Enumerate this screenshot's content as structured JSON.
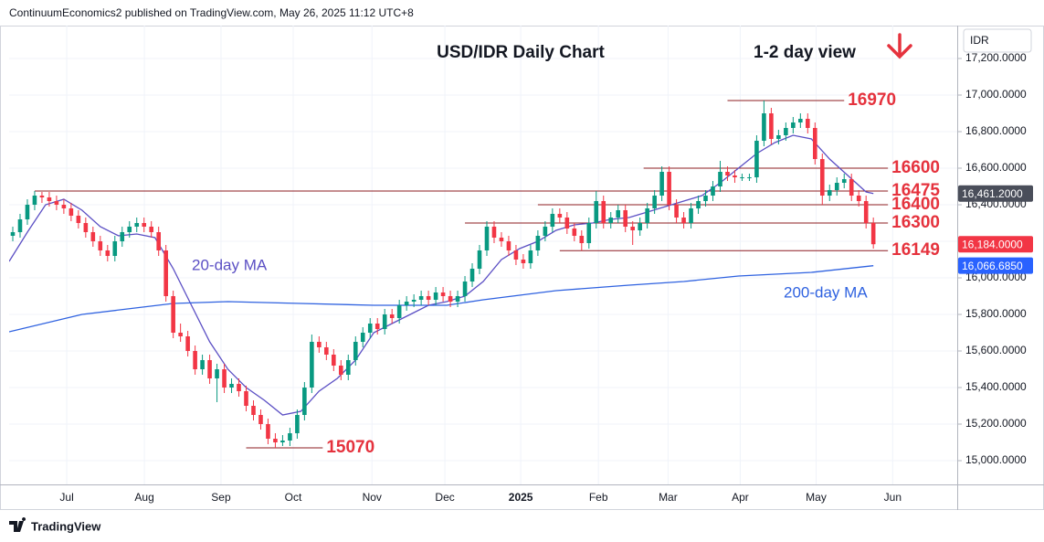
{
  "header": "ContinuumEconomics2 published on TradingView.com, May 26, 2025 11:12 UTC+8",
  "footer": "TradingView",
  "chart_data": {
    "type": "candlestick",
    "title": "USD/IDR Daily Chart",
    "subtitle": "1-2 day view",
    "currency": "IDR",
    "up_color": "#089981",
    "down_color": "#f23645",
    "grid": true,
    "xlim": [
      0,
      260
    ],
    "xticks": [
      {
        "value": 15.8,
        "label": "Jul"
      },
      {
        "value": 37.1,
        "label": "Aug"
      },
      {
        "value": 58.1,
        "label": "Sep"
      },
      {
        "value": 77.9,
        "label": "Oct"
      },
      {
        "value": 99.5,
        "label": "Nov"
      },
      {
        "value": 119.5,
        "label": "Dec"
      },
      {
        "value": 140.3,
        "label": "2025"
      },
      {
        "value": 161.6,
        "label": "Feb"
      },
      {
        "value": 180.7,
        "label": "Mar"
      },
      {
        "value": 200.5,
        "label": "Apr"
      },
      {
        "value": 221.3,
        "label": "May"
      },
      {
        "value": 242.3,
        "label": "Jun"
      }
    ],
    "ylim": [
      14870,
      17380
    ],
    "yticks": [
      {
        "value": 17200,
        "label": "17,200.0000"
      },
      {
        "value": 17000,
        "label": "17,000.0000"
      },
      {
        "value": 16800,
        "label": "16,800.0000"
      },
      {
        "value": 16600,
        "label": "16,600.0000"
      },
      {
        "value": 16400,
        "label": "16,400.0000"
      },
      {
        "value": 16200,
        "label": "16,200.0000"
      },
      {
        "value": 16000,
        "label": "16,000.0000"
      },
      {
        "value": 15800,
        "label": "15,800.0000"
      },
      {
        "value": 15600,
        "label": "15,600.0000"
      },
      {
        "value": 15400,
        "label": "15,400.0000"
      },
      {
        "value": 15200,
        "label": "15,200.0000"
      },
      {
        "value": 15000,
        "label": "15,000.0000"
      }
    ],
    "candles": {
      "x": [
        1,
        3,
        5,
        7,
        9,
        11,
        13,
        15,
        17,
        19,
        21,
        23,
        25,
        27,
        29,
        31,
        33,
        35,
        37,
        39,
        41,
        43,
        45,
        47,
        49,
        51,
        53,
        55,
        57,
        59,
        61,
        63,
        65,
        67,
        69,
        71,
        73,
        75,
        77,
        79,
        81,
        83,
        85,
        87,
        89,
        91,
        93,
        95,
        97,
        99,
        101,
        103,
        105,
        107,
        109,
        111,
        113,
        115,
        117,
        119,
        121,
        123,
        125,
        127,
        129,
        131,
        133,
        135,
        137,
        139,
        141,
        143,
        145,
        147,
        149,
        151,
        153,
        155,
        157,
        159,
        161,
        163,
        165,
        167,
        169,
        171,
        173,
        175,
        177,
        179,
        181,
        183,
        185,
        187,
        189,
        191,
        193,
        195,
        197,
        199,
        201,
        203,
        205,
        207,
        209,
        211,
        213,
        215,
        217,
        219,
        221,
        223,
        225,
        227,
        229,
        231,
        233,
        235,
        237
      ],
      "open": [
        16230,
        16250,
        16320,
        16400,
        16450,
        16440,
        16420,
        16400,
        16380,
        16340,
        16300,
        16250,
        16200,
        16150,
        16120,
        16200,
        16250,
        16280,
        16300,
        16280,
        16250,
        16150,
        15900,
        15700,
        15680,
        15600,
        15500,
        15550,
        15450,
        15500,
        15400,
        15420,
        15380,
        15300,
        15250,
        15200,
        15120,
        15100,
        15110,
        15150,
        15250,
        15400,
        15650,
        15620,
        15580,
        15520,
        15470,
        15550,
        15650,
        15700,
        15750,
        15720,
        15800,
        15780,
        15850,
        15870,
        15880,
        15900,
        15880,
        15920,
        15900,
        15870,
        15900,
        15980,
        16050,
        16150,
        16280,
        16220,
        16200,
        16150,
        16100,
        16080,
        16150,
        16230,
        16280,
        16350,
        16330,
        16270,
        16230,
        16190,
        16300,
        16420,
        16300,
        16330,
        16370,
        16280,
        16260,
        16300,
        16380,
        16450,
        16580,
        16400,
        16330,
        16300,
        16380,
        16420,
        16450,
        16500,
        16580,
        16560,
        16550,
        16550,
        16550,
        16750,
        16900,
        16760,
        16780,
        16820,
        16850,
        16870,
        16820,
        16650,
        16450,
        16480,
        16520,
        16540,
        16450,
        16420,
        16300
      ],
      "high": [
        16280,
        16350,
        16430,
        16475,
        16470,
        16470,
        16450,
        16430,
        16410,
        16370,
        16330,
        16280,
        16230,
        16180,
        16230,
        16280,
        16310,
        16330,
        16330,
        16310,
        16280,
        16180,
        15930,
        15750,
        15710,
        15630,
        15580,
        15580,
        15530,
        15530,
        15450,
        15450,
        15410,
        15330,
        15280,
        15230,
        15150,
        15140,
        15180,
        15280,
        15430,
        15690,
        15680,
        15650,
        15610,
        15550,
        15580,
        15680,
        15730,
        15780,
        15780,
        15830,
        15830,
        15880,
        15900,
        15910,
        15930,
        15930,
        15950,
        15950,
        15930,
        15930,
        16010,
        16080,
        16180,
        16310,
        16310,
        16250,
        16230,
        16180,
        16130,
        16180,
        16260,
        16310,
        16380,
        16380,
        16360,
        16300,
        16260,
        16330,
        16475,
        16450,
        16360,
        16400,
        16400,
        16310,
        16330,
        16410,
        16480,
        16610,
        16610,
        16430,
        16360,
        16410,
        16450,
        16480,
        16530,
        16640,
        16610,
        16590,
        16570,
        16570,
        16780,
        16970,
        16930,
        16810,
        16850,
        16880,
        16900,
        16900,
        16850,
        16680,
        16510,
        16550,
        16570,
        16570,
        16480,
        16450,
        16330
      ],
      "low": [
        16200,
        16220,
        16290,
        16370,
        16410,
        16390,
        16370,
        16350,
        16310,
        16270,
        16220,
        16170,
        16120,
        16090,
        16090,
        16170,
        16220,
        16250,
        16250,
        16220,
        16120,
        15870,
        15670,
        15650,
        15570,
        15470,
        15470,
        15420,
        15320,
        15370,
        15370,
        15350,
        15270,
        15220,
        15170,
        15090,
        15070,
        15080,
        15080,
        15120,
        15220,
        15370,
        15590,
        15550,
        15490,
        15440,
        15440,
        15520,
        15620,
        15670,
        15690,
        15690,
        15750,
        15750,
        15820,
        15840,
        15850,
        15850,
        15850,
        15870,
        15840,
        15840,
        15870,
        15950,
        16020,
        16120,
        16190,
        16170,
        16120,
        16070,
        16050,
        16050,
        16120,
        16200,
        16250,
        16300,
        16240,
        16200,
        16149,
        16160,
        16270,
        16270,
        16270,
        16300,
        16250,
        16180,
        16230,
        16270,
        16350,
        16420,
        16370,
        16300,
        16270,
        16270,
        16350,
        16390,
        16420,
        16470,
        16530,
        16520,
        16530,
        16530,
        16520,
        16720,
        16730,
        16730,
        16750,
        16790,
        16820,
        16790,
        16620,
        16400,
        16420,
        16450,
        16490,
        16420,
        16390,
        16270,
        16160
      ],
      "close": [
        16250,
        16320,
        16400,
        16450,
        16440,
        16420,
        16400,
        16380,
        16340,
        16300,
        16250,
        16200,
        16150,
        16120,
        16200,
        16250,
        16280,
        16300,
        16280,
        16250,
        16150,
        15900,
        15700,
        15680,
        15600,
        15500,
        15550,
        15450,
        15500,
        15400,
        15420,
        15380,
        15300,
        15250,
        15200,
        15120,
        15100,
        15110,
        15150,
        15250,
        15400,
        15650,
        15620,
        15580,
        15520,
        15470,
        15550,
        15650,
        15700,
        15750,
        15720,
        15800,
        15780,
        15850,
        15870,
        15880,
        15900,
        15880,
        15920,
        15900,
        15870,
        15900,
        15980,
        16050,
        16150,
        16280,
        16220,
        16200,
        16150,
        16100,
        16080,
        16150,
        16230,
        16280,
        16350,
        16330,
        16270,
        16230,
        16190,
        16300,
        16420,
        16300,
        16330,
        16370,
        16280,
        16260,
        16300,
        16380,
        16450,
        16580,
        16400,
        16330,
        16300,
        16380,
        16420,
        16450,
        16500,
        16580,
        16560,
        16550,
        16550,
        16550,
        16750,
        16900,
        16760,
        16780,
        16820,
        16850,
        16870,
        16820,
        16650,
        16450,
        16480,
        16520,
        16540,
        16450,
        16420,
        16300,
        16184
      ]
    },
    "series": [
      {
        "name": "20-day MA",
        "color": "#5b4fc4",
        "x": [
          0,
          5,
          10,
          15,
          20,
          25,
          30,
          35,
          40,
          45,
          50,
          55,
          60,
          65,
          70,
          75,
          80,
          85,
          90,
          95,
          100,
          105,
          110,
          115,
          120,
          125,
          130,
          135,
          140,
          145,
          150,
          155,
          160,
          165,
          170,
          175,
          180,
          185,
          190,
          195,
          200,
          205,
          210,
          215,
          220,
          225,
          230,
          235,
          237
        ],
        "values": [
          16090,
          16250,
          16400,
          16430,
          16370,
          16280,
          16230,
          16240,
          16220,
          16050,
          15850,
          15650,
          15500,
          15400,
          15330,
          15250,
          15270,
          15380,
          15450,
          15550,
          15700,
          15750,
          15800,
          15850,
          15870,
          15900,
          15980,
          16100,
          16160,
          16200,
          16260,
          16290,
          16300,
          16320,
          16330,
          16360,
          16390,
          16420,
          16450,
          16520,
          16600,
          16680,
          16740,
          16780,
          16760,
          16650,
          16560,
          16470,
          16461.2
        ]
      },
      {
        "name": "200-day MA",
        "color": "#2f62e0",
        "x": [
          0,
          20,
          45,
          60,
          80,
          100,
          120,
          130,
          150,
          170,
          185,
          200,
          220,
          237
        ],
        "values": [
          15705,
          15800,
          15860,
          15870,
          15860,
          15850,
          15850,
          15880,
          15930,
          15960,
          15980,
          16010,
          16030,
          16066.685
        ]
      }
    ],
    "levels": [
      {
        "value": 16970,
        "from": 197,
        "to": 229
      },
      {
        "value": 16600,
        "from": 174,
        "to": 241
      },
      {
        "value": 16475,
        "from": 7,
        "to": 241
      },
      {
        "value": 16400,
        "from": 145,
        "to": 241
      },
      {
        "value": 16300,
        "from": 125,
        "to": 241
      },
      {
        "value": 16149,
        "from": 151,
        "to": 241
      },
      {
        "value": 15070,
        "from": 65,
        "to": 86
      }
    ],
    "level_color": "#e5323d",
    "price_tags": [
      {
        "value": 16461.2,
        "label": "16,461.2000",
        "color": "#4a4e5a"
      },
      {
        "value": 16184,
        "label": "16,184.0000",
        "color": "#f23645"
      },
      {
        "value": 16066.685,
        "label": "16,066.6850",
        "color": "#2962ff"
      }
    ]
  }
}
